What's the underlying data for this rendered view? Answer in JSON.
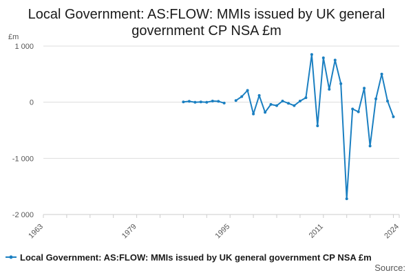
{
  "chart_data": {
    "type": "line",
    "title": "Local Government: AS:FLOW: MMIs issued by UK general government CP NSA £m",
    "unit_label": "£m",
    "xlabel": "",
    "ylabel": "",
    "xlim": [
      1963,
      2024
    ],
    "ylim": [
      -2000,
      1000
    ],
    "x_ticks": [
      "1963",
      "1979",
      "1995",
      "2011",
      "2024"
    ],
    "y_ticks": [
      "1 000",
      "0",
      "-1 000",
      "-2 000"
    ],
    "grid": "horizontal",
    "legend_position": "bottom",
    "source_label": "Source:",
    "color": "#1a7fc1",
    "series": [
      {
        "name": "Local Government: AS:FLOW: MMIs issued by UK general government CP NSA £m",
        "segments": [
          {
            "x": [
              1987,
              1988,
              1989,
              1990,
              1991,
              1992,
              1993,
              1994,
              1995
            ],
            "y": [
              5,
              15,
              0,
              5,
              0,
              20,
              15,
              -15,
              null
            ]
          },
          {
            "x": [
              1996,
              1997,
              1998,
              1999,
              2000,
              2001,
              2002,
              2003,
              2004,
              2005,
              2006,
              2007,
              2008,
              2009,
              2010,
              2011,
              2012,
              2013,
              2014,
              2015,
              2016,
              2017,
              2018,
              2019,
              2020,
              2021,
              2022,
              2023,
              2024
            ],
            "y": [
              30,
              100,
              210,
              -210,
              120,
              -180,
              -40,
              -60,
              20,
              -20,
              -60,
              20,
              80,
              850,
              -420,
              790,
              230,
              750,
              330,
              -1720,
              -120,
              -170,
              250,
              -780,
              60,
              500,
              20,
              -260,
              null
            ]
          }
        ]
      }
    ]
  }
}
